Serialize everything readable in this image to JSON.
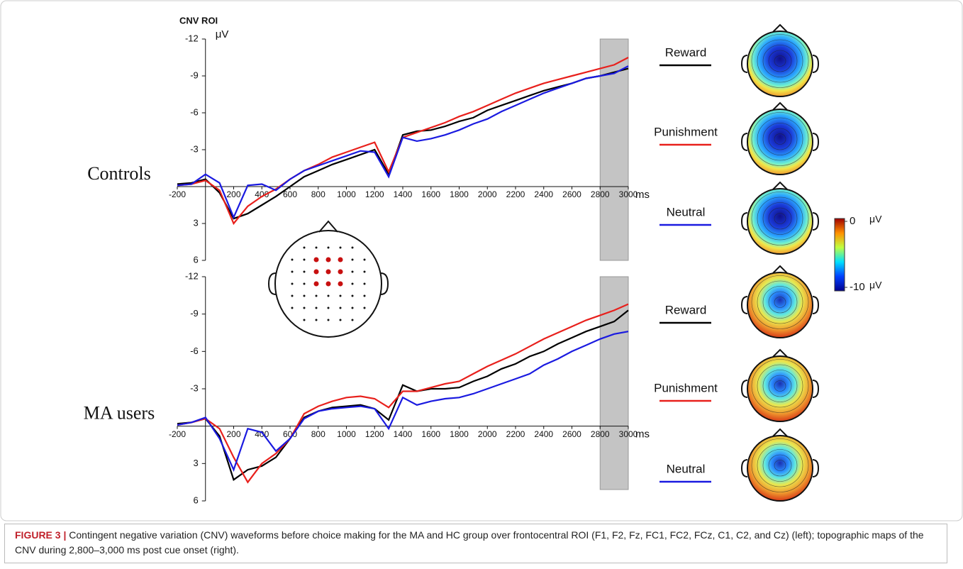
{
  "chart_data": [
    {
      "type": "line",
      "title": "CNV ROI",
      "group_label": "Controls",
      "y_unit": "μV",
      "x_unit": "ms",
      "x": [
        -200,
        -100,
        0,
        100,
        200,
        300,
        400,
        500,
        600,
        700,
        800,
        900,
        1000,
        1100,
        1200,
        1300,
        1400,
        1500,
        1600,
        1700,
        1800,
        1900,
        2000,
        2100,
        2200,
        2300,
        2400,
        2500,
        2600,
        2700,
        2800,
        2900,
        3000
      ],
      "xlim": [
        -200,
        3000
      ],
      "ylim": [
        6,
        -12
      ],
      "xticks": [
        -200,
        200,
        400,
        600,
        800,
        1000,
        1200,
        1400,
        1600,
        1800,
        2000,
        2200,
        2400,
        2600,
        2800,
        3000
      ],
      "yticks": [
        -12,
        -9,
        -6,
        -3,
        3,
        6
      ],
      "highlight": [
        2800,
        3000
      ],
      "series": [
        {
          "name": "Reward",
          "color": "#000000",
          "values": [
            -0.2,
            -0.3,
            -0.6,
            0.5,
            2.6,
            2.2,
            1.5,
            0.8,
            0,
            -0.8,
            -1.3,
            -1.8,
            -2.2,
            -2.6,
            -3.0,
            -1.0,
            -4.2,
            -4.5,
            -4.6,
            -4.9,
            -5.3,
            -5.6,
            -6.2,
            -6.6,
            -7.0,
            -7.4,
            -7.8,
            -8.1,
            -8.4,
            -8.8,
            -9.0,
            -9.3,
            -9.6
          ]
        },
        {
          "name": "Punishment",
          "color": "#e8201c",
          "values": [
            -0.1,
            -0.2,
            -0.5,
            0.3,
            3.0,
            1.6,
            0.8,
            0.2,
            -0.6,
            -1.3,
            -1.8,
            -2.4,
            -2.8,
            -3.2,
            -3.6,
            -1.2,
            -4.0,
            -4.4,
            -4.8,
            -5.2,
            -5.7,
            -6.1,
            -6.6,
            -7.1,
            -7.6,
            -8.0,
            -8.4,
            -8.7,
            -9.0,
            -9.3,
            -9.6,
            -9.9,
            -10.5
          ]
        },
        {
          "name": "Neutral",
          "color": "#1a1ae0",
          "values": [
            -0.1,
            -0.2,
            -1.0,
            -0.3,
            2.5,
            -0.1,
            -0.2,
            0.3,
            -0.6,
            -1.3,
            -1.7,
            -2.1,
            -2.5,
            -2.9,
            -2.8,
            -0.8,
            -4.0,
            -3.7,
            -3.9,
            -4.2,
            -4.6,
            -5.1,
            -5.5,
            -6.1,
            -6.6,
            -7.1,
            -7.6,
            -8.0,
            -8.4,
            -8.8,
            -9.0,
            -9.2,
            -9.8
          ]
        }
      ]
    },
    {
      "type": "line",
      "group_label": "MA users",
      "x_unit": "ms",
      "x": [
        -200,
        -100,
        0,
        100,
        200,
        300,
        400,
        500,
        600,
        700,
        800,
        900,
        1000,
        1100,
        1200,
        1300,
        1400,
        1500,
        1600,
        1700,
        1800,
        1900,
        2000,
        2100,
        2200,
        2300,
        2400,
        2500,
        2600,
        2700,
        2800,
        2900,
        3000
      ],
      "xlim": [
        -200,
        3000
      ],
      "ylim": [
        6,
        -12
      ],
      "xticks": [
        -200,
        200,
        400,
        600,
        800,
        1000,
        1200,
        1400,
        1600,
        1800,
        2000,
        2200,
        2400,
        2600,
        2800,
        3000
      ],
      "yticks": [
        -12,
        -9,
        -6,
        -3,
        3,
        6
      ],
      "highlight": [
        2800,
        3000
      ],
      "series": [
        {
          "name": "Reward",
          "color": "#000000",
          "values": [
            -0.2,
            -0.3,
            -0.6,
            0.8,
            4.3,
            3.5,
            3.2,
            2.5,
            1.0,
            -0.7,
            -1.2,
            -1.5,
            -1.6,
            -1.7,
            -1.4,
            -0.5,
            -3.3,
            -2.8,
            -3.0,
            -3.0,
            -3.1,
            -3.6,
            -4.0,
            -4.6,
            -5.0,
            -5.6,
            -6.0,
            -6.6,
            -7.1,
            -7.6,
            -8.0,
            -8.4,
            -9.3
          ]
        },
        {
          "name": "Punishment",
          "color": "#e8201c",
          "values": [
            -0.1,
            -0.3,
            -0.6,
            0.2,
            2.5,
            4.5,
            3.0,
            2.2,
            1.0,
            -1.0,
            -1.6,
            -2.0,
            -2.3,
            -2.4,
            -2.2,
            -1.5,
            -2.8,
            -2.8,
            -3.1,
            -3.4,
            -3.6,
            -4.2,
            -4.8,
            -5.3,
            -5.8,
            -6.4,
            -7.0,
            -7.5,
            -8.0,
            -8.5,
            -8.9,
            -9.3,
            -9.8
          ]
        },
        {
          "name": "Neutral",
          "color": "#1a1ae0",
          "values": [
            -0.1,
            -0.3,
            -0.7,
            1.0,
            3.5,
            0.2,
            0.5,
            2.0,
            1.0,
            -0.6,
            -1.2,
            -1.4,
            -1.5,
            -1.6,
            -1.4,
            0.2,
            -2.3,
            -1.7,
            -2.0,
            -2.2,
            -2.3,
            -2.6,
            -3.0,
            -3.4,
            -3.8,
            -4.2,
            -4.9,
            -5.4,
            -6.0,
            -6.5,
            -7.0,
            -7.4,
            -7.6
          ]
        }
      ]
    }
  ],
  "colorbar": {
    "ticks": [
      0,
      -10
    ],
    "unit": "μV"
  },
  "caption": {
    "label": "FIGURE 3 |",
    "text": "Contingent negative variation (CNV) waveforms before choice making for the MA and HC group over frontocentral ROI (F1, F2, Fz, FC1, FC2, FCz, C1, C2, and Cz) (left); topographic maps of the CNV during 2,800–3,000 ms post cue onset (right)."
  }
}
